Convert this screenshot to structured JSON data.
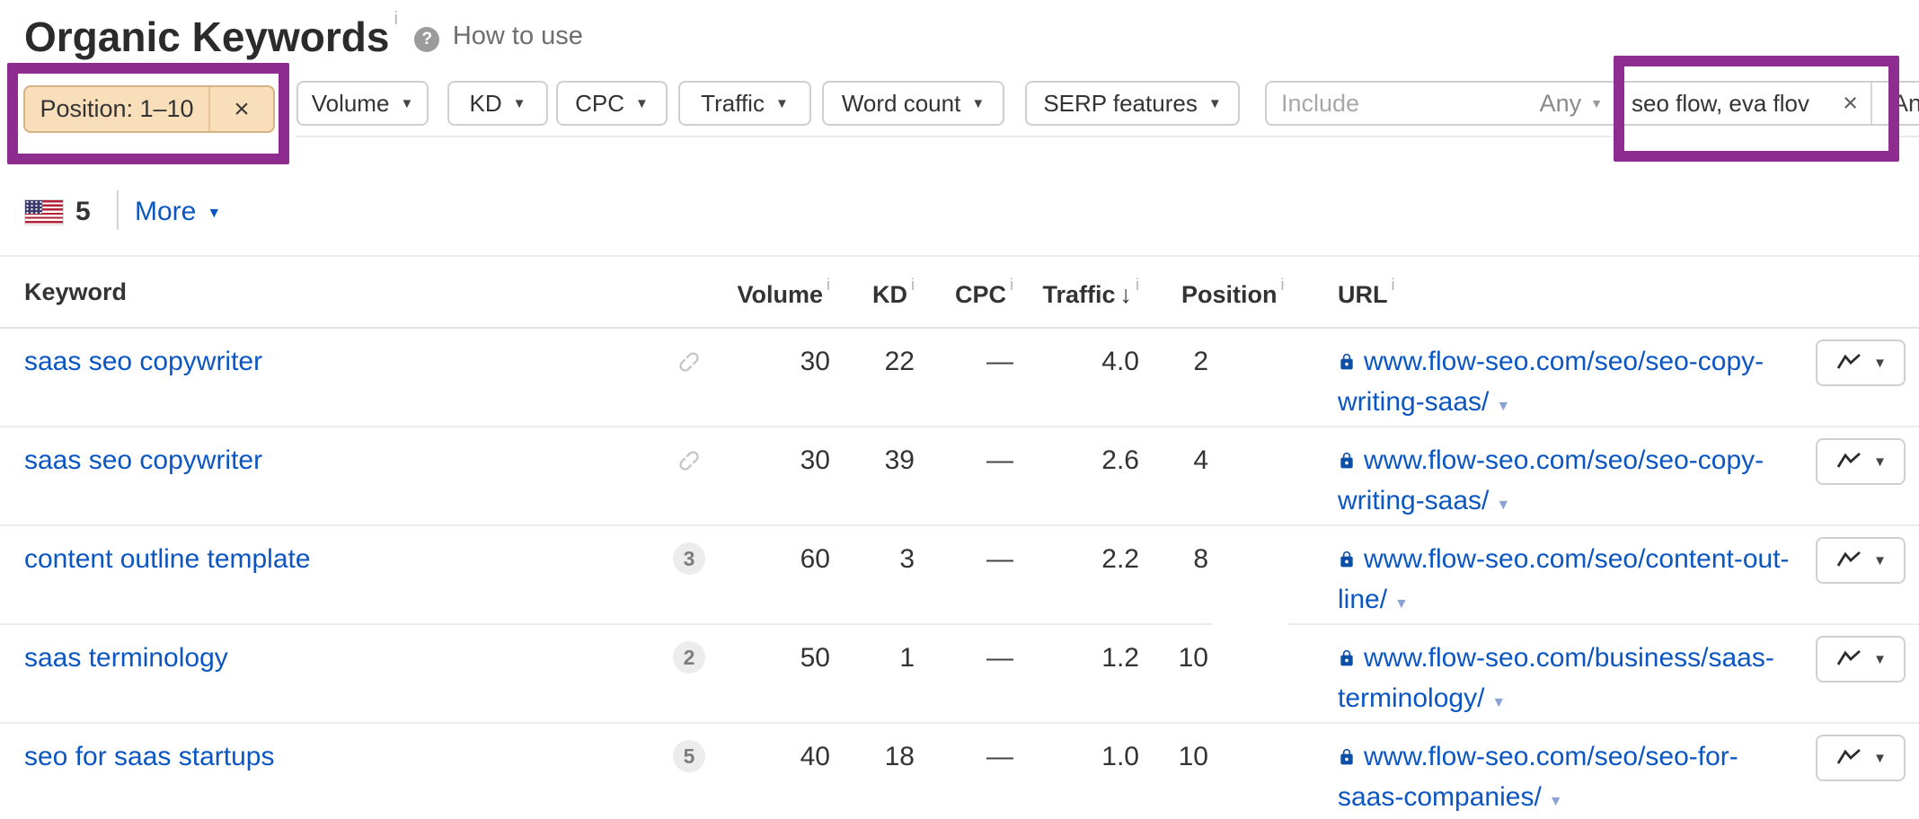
{
  "colors": {
    "link": "#0b56c3",
    "annotation": "#8e2c90",
    "chip_bg": "#f9deba",
    "chip_border": "#d4b286",
    "lock": "#0d4fa7",
    "url_caret": "#8ba3d4"
  },
  "glyphs": {
    "caret_down": "▼",
    "sort_desc": "↓",
    "info": "i",
    "question": "?",
    "clear": "×"
  },
  "header": {
    "title": "Organic Keywords",
    "help_label": "How to use"
  },
  "filters": {
    "chip_label": "Position: 1–10",
    "volume": "Volume",
    "kd": "KD",
    "cpc": "CPC",
    "traffic": "Traffic",
    "word_count": "Word count",
    "serp_features": "SERP features",
    "include_placeholder": "Include",
    "include_mode": "Any",
    "keyword_filter_value": "seo flow, eva flov",
    "next_mode": "Any"
  },
  "toolbar": {
    "country_count": "5",
    "more_label": "More"
  },
  "table": {
    "columns": {
      "keyword": "Keyword",
      "volume": "Volume",
      "kd": "KD",
      "cpc": "CPC",
      "traffic": "Traffic",
      "position": "Position",
      "url": "URL"
    },
    "rows": [
      {
        "keyword": "saas seo copywriter",
        "volume": "30",
        "kd": "22",
        "cpc": "—",
        "traffic": "4.0",
        "position": "2",
        "url_line1": "www.flow-seo.com/seo/seo-copy-",
        "url_line2": "writing-saas/"
      },
      {
        "keyword": "saas seo copywriter",
        "volume": "30",
        "kd": "39",
        "cpc": "—",
        "traffic": "2.6",
        "position": "4",
        "url_line1": "www.flow-seo.com/seo/seo-copy-",
        "url_line2": "writing-saas/"
      },
      {
        "keyword": "content outline template",
        "badge": "3",
        "volume": "60",
        "kd": "3",
        "cpc": "—",
        "traffic": "2.2",
        "position": "8",
        "url_line1": "www.flow-seo.com/seo/content-out-",
        "url_line2": "line/"
      },
      {
        "keyword": "saas terminology",
        "badge": "2",
        "volume": "50",
        "kd": "1",
        "cpc": "—",
        "traffic": "1.2",
        "position": "10",
        "url_line1": "www.flow-seo.com/business/saas-",
        "url_line2": "terminology/"
      },
      {
        "keyword": "seo for saas startups",
        "badge": "5",
        "volume": "40",
        "kd": "18",
        "cpc": "—",
        "traffic": "1.0",
        "position": "10",
        "url_line1": "www.flow-seo.com/seo/seo-for-",
        "url_line2": "saas-companies/"
      }
    ]
  }
}
